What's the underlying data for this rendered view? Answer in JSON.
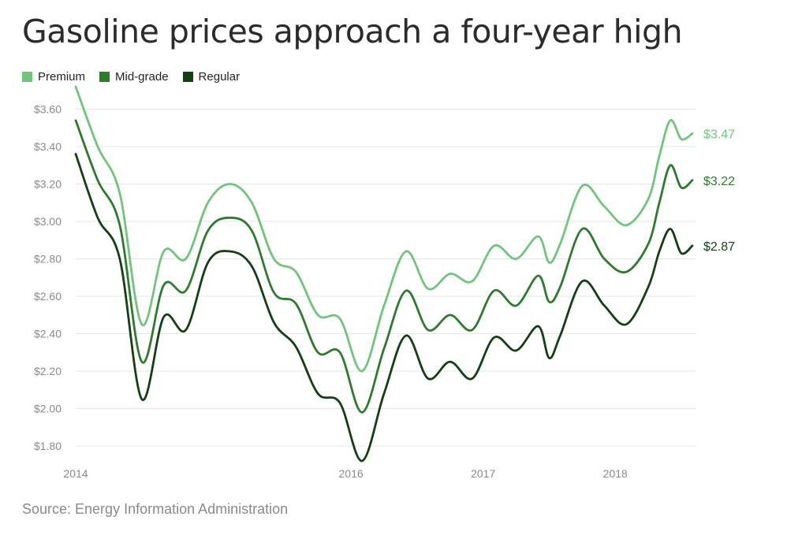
{
  "chart_data": {
    "type": "line",
    "title": "Gasoline prices approach a four-year high",
    "source": "Source: Energy Information Administration",
    "y_ticks": [
      "$3.60",
      "$3.40",
      "$3.20",
      "$3.00",
      "$2.80",
      "$2.60",
      "$2.40",
      "$2.20",
      "$2.00",
      "$1.80"
    ],
    "y_tick_values": [
      3.6,
      3.4,
      3.2,
      3.0,
      2.8,
      2.6,
      2.4,
      2.2,
      2.0,
      1.8
    ],
    "x_ticks": [
      "2014",
      "2016",
      "2017",
      "2018"
    ],
    "ylim": [
      1.72,
      3.72
    ],
    "grid": true,
    "legend_position": "top-left",
    "x": [
      "2014-01",
      "2014-03",
      "2014-05",
      "2014-07",
      "2014-09",
      "2014-11",
      "2015-01",
      "2015-03",
      "2015-05",
      "2015-07",
      "2015-09",
      "2015-11",
      "2016-01",
      "2016-03",
      "2016-05",
      "2016-07",
      "2016-09",
      "2016-11",
      "2017-01",
      "2017-03",
      "2017-05",
      "2017-07",
      "2017-08",
      "2017-09",
      "2017-11",
      "2018-01",
      "2018-03",
      "2018-05",
      "2018-06",
      "2018-07",
      "2018-08",
      "2018-09"
    ],
    "series": [
      {
        "name": "Premium",
        "color": "#72c47c",
        "end_label": "$3.47",
        "values": [
          3.72,
          3.4,
          3.15,
          2.45,
          2.84,
          2.8,
          3.1,
          3.2,
          3.1,
          2.8,
          2.73,
          2.5,
          2.48,
          2.2,
          2.55,
          2.84,
          2.64,
          2.72,
          2.68,
          2.87,
          2.8,
          2.92,
          2.78,
          2.88,
          3.19,
          3.08,
          2.98,
          3.12,
          3.35,
          3.54,
          3.44,
          3.47
        ]
      },
      {
        "name": "Mid-grade",
        "color": "#2e7a2e",
        "end_label": "$3.22",
        "values": [
          3.54,
          3.22,
          2.98,
          2.25,
          2.66,
          2.63,
          2.95,
          3.02,
          2.95,
          2.62,
          2.56,
          2.3,
          2.3,
          1.98,
          2.32,
          2.63,
          2.42,
          2.5,
          2.42,
          2.63,
          2.55,
          2.71,
          2.57,
          2.65,
          2.96,
          2.8,
          2.73,
          2.88,
          3.1,
          3.3,
          3.18,
          3.22
        ]
      },
      {
        "name": "Regular",
        "color": "#143f14",
        "end_label": "$2.87",
        "values": [
          3.36,
          3.02,
          2.8,
          2.05,
          2.49,
          2.42,
          2.78,
          2.84,
          2.76,
          2.46,
          2.33,
          2.08,
          2.03,
          1.72,
          2.08,
          2.39,
          2.16,
          2.25,
          2.16,
          2.38,
          2.31,
          2.44,
          2.27,
          2.39,
          2.68,
          2.55,
          2.45,
          2.65,
          2.84,
          2.96,
          2.83,
          2.87
        ]
      }
    ]
  }
}
